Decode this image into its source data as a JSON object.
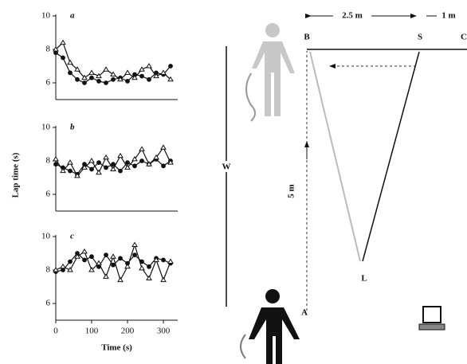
{
  "chart_data": [
    {
      "type": "line",
      "title": "a",
      "xlim": [
        0,
        340
      ],
      "ylim": [
        5,
        10
      ],
      "yticks": [
        6,
        8,
        10
      ],
      "x": [
        0,
        20,
        40,
        60,
        80,
        100,
        120,
        140,
        160,
        180,
        200,
        220,
        240,
        260,
        280,
        300,
        320
      ],
      "series": [
        {
          "color": "#111111",
          "marker": "filled-circle",
          "values": [
            7.8,
            7.5,
            6.6,
            6.2,
            6.0,
            6.3,
            6.1,
            6.0,
            6.2,
            6.3,
            6.1,
            6.5,
            6.4,
            6.2,
            6.6,
            6.5,
            7.0
          ]
        },
        {
          "color": "#111111",
          "marker": "open-triangle",
          "values": [
            8.0,
            8.4,
            7.2,
            6.8,
            6.3,
            6.6,
            6.4,
            6.8,
            6.5,
            6.2,
            6.6,
            6.3,
            6.8,
            7.0,
            6.4,
            6.6,
            6.2
          ]
        }
      ]
    },
    {
      "type": "line",
      "title": "b",
      "ylabel": "Lap time (s)",
      "xlim": [
        0,
        340
      ],
      "ylim": [
        5,
        10
      ],
      "yticks": [
        6,
        8,
        10
      ],
      "x": [
        0,
        20,
        40,
        60,
        80,
        100,
        120,
        140,
        160,
        180,
        200,
        220,
        240,
        260,
        280,
        300,
        320
      ],
      "series": [
        {
          "color": "#111111",
          "marker": "filled-circle",
          "values": [
            7.8,
            7.6,
            7.4,
            7.2,
            7.8,
            7.5,
            7.9,
            7.6,
            7.8,
            7.4,
            7.9,
            7.7,
            8.0,
            7.8,
            8.1,
            7.7,
            8.0
          ]
        },
        {
          "color": "#111111",
          "marker": "open-triangle",
          "values": [
            8.1,
            7.4,
            7.9,
            7.1,
            7.6,
            8.0,
            7.3,
            8.2,
            7.5,
            8.3,
            7.6,
            8.1,
            8.7,
            7.8,
            8.2,
            8.8,
            7.9
          ]
        }
      ]
    },
    {
      "type": "line",
      "title": "c",
      "xlabel": "Time (s)",
      "xlim": [
        0,
        340
      ],
      "xticks": [
        0,
        100,
        200,
        300
      ],
      "ylim": [
        5,
        10
      ],
      "yticks": [
        6,
        8,
        10
      ],
      "x": [
        0,
        20,
        40,
        60,
        80,
        100,
        120,
        140,
        160,
        180,
        200,
        220,
        240,
        260,
        280,
        300,
        320
      ],
      "series": [
        {
          "color": "#111111",
          "marker": "filled-circle",
          "values": [
            7.9,
            8.0,
            8.5,
            9.0,
            8.6,
            8.8,
            8.2,
            8.9,
            8.3,
            8.7,
            8.4,
            8.9,
            8.5,
            8.2,
            8.7,
            8.6,
            8.4
          ]
        },
        {
          "color": "#111111",
          "marker": "open-triangle",
          "values": [
            8.0,
            8.2,
            8.0,
            8.8,
            9.1,
            8.0,
            8.4,
            7.6,
            8.8,
            7.4,
            8.2,
            9.5,
            8.1,
            7.5,
            8.6,
            7.4,
            8.5
          ]
        }
      ]
    }
  ],
  "diagram": {
    "dist_bs": "2.5 m",
    "dist_sc": "1 m",
    "dist_ab": "5 m",
    "labels": {
      "b": "B",
      "s": "S",
      "c": "C",
      "w": "W",
      "l": "L",
      "a": "A"
    }
  }
}
